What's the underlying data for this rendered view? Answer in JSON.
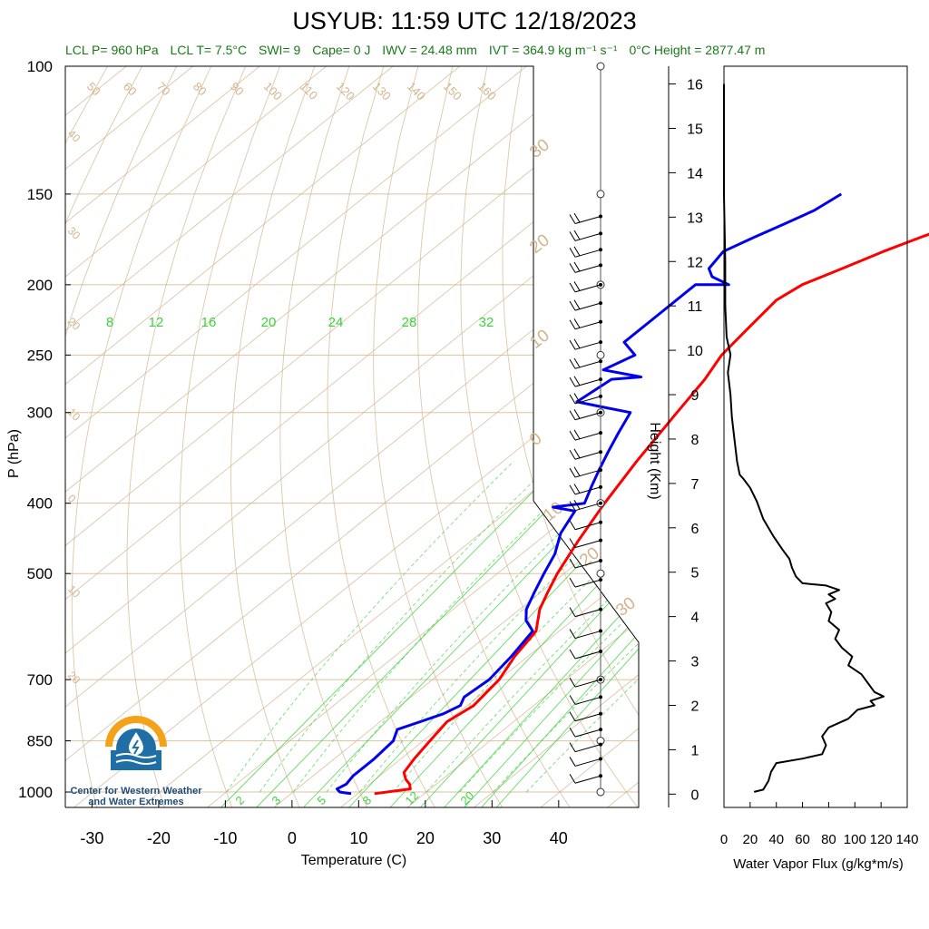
{
  "header": {
    "title": "USYUB: 11:59 UTC 12/18/2023"
  },
  "stats": {
    "lcl_p": "LCL P= 960 hPa",
    "lcl_t": "LCL T= 7.5°C",
    "swi": "SWI= 9",
    "cape": "Cape= 0 J",
    "iwv": "IWV = 24.48 mm",
    "ivt": "IVT = 364.9 kg m⁻¹ s⁻¹",
    "freezing": "0°C Height = 2877.47 m"
  },
  "logo": {
    "line1": "Center for Western Weather",
    "line2": "and Water Extremes"
  },
  "colors": {
    "temperature": "#ff0000",
    "dewpoint": "#0000ee",
    "dry_adiabat": "#d2b48c",
    "mixing_ratio": "#3cd23c",
    "logo_orange": "#f5a21b",
    "logo_blue": "#1f6fa6"
  },
  "chart_data": [
    {
      "type": "line",
      "name": "skew-t",
      "xlabel": "Temperature (C)",
      "ylabel": "P (hPa)",
      "xlim": [
        -34,
        52
      ],
      "ylim": [
        1050,
        100
      ],
      "y_scale": "log",
      "x_ticks": [
        -30,
        -20,
        -10,
        0,
        10,
        20,
        30,
        40
      ],
      "y_ticks": [
        100,
        150,
        200,
        250,
        300,
        400,
        500,
        700,
        850,
        1000
      ],
      "temperature_labels_top": [
        "50",
        "60",
        "70",
        "80",
        "90",
        "100",
        "110",
        "120",
        "130",
        "140",
        "150",
        "160"
      ],
      "dry_adiabat_labels_left": [
        "40",
        "30",
        "20",
        "10",
        "0",
        "10",
        "20"
      ],
      "dry_adiabat_labels_right": [
        "30",
        "20",
        "10",
        "0",
        "10",
        "20",
        "30"
      ],
      "mixing_ratio_labels_top": [
        "8",
        "12",
        "16",
        "20",
        "24",
        "28",
        "32"
      ],
      "mixing_ratio_labels_bottom": [
        "2",
        "3",
        "5",
        "8",
        "12",
        "20"
      ],
      "series": [
        {
          "name": "Temperature",
          "points": [
            [
              12.5,
              1005
            ],
            [
              17,
              990
            ],
            [
              16,
              975
            ],
            [
              14.5,
              960
            ],
            [
              13,
              940
            ],
            [
              12,
              900
            ],
            [
              11,
              850
            ],
            [
              10,
              800
            ],
            [
              11,
              760
            ],
            [
              10.5,
              730
            ],
            [
              10,
              700
            ],
            [
              8,
              650
            ],
            [
              6.5,
              600
            ],
            [
              3,
              560
            ],
            [
              1,
              530
            ],
            [
              -1,
              500
            ],
            [
              -4,
              450
            ],
            [
              -7,
              400
            ],
            [
              -10,
              350
            ],
            [
              -13,
              300
            ],
            [
              -15,
              270
            ],
            [
              -17,
              250
            ],
            [
              -18,
              230
            ],
            [
              -19,
              210
            ],
            [
              -18,
              200
            ],
            [
              -15,
              190
            ],
            [
              -12,
              180
            ],
            [
              -9,
              172
            ],
            [
              -6,
              165
            ],
            [
              -4,
              158
            ],
            [
              -3,
              150
            ]
          ]
        },
        {
          "name": "Dewpoint",
          "points": [
            [
              9,
              1005
            ],
            [
              7,
              1000
            ],
            [
              6,
              990
            ],
            [
              6.5,
              975
            ],
            [
              6,
              950
            ],
            [
              6,
              900
            ],
            [
              5.5,
              850
            ],
            [
              4,
              820
            ],
            [
              6,
              800
            ],
            [
              8,
              780
            ],
            [
              9,
              760
            ],
            [
              8,
              740
            ],
            [
              8.5,
              700
            ],
            [
              7.5,
              650
            ],
            [
              6,
              600
            ],
            [
              3,
              580
            ],
            [
              1,
              560
            ],
            [
              -1,
              530
            ],
            [
              -3,
              500
            ],
            [
              -5,
              470
            ],
            [
              -8,
              440
            ],
            [
              -10,
              410
            ],
            [
              -14,
              405
            ],
            [
              -10,
              400
            ],
            [
              -12,
              380
            ],
            [
              -14,
              360
            ],
            [
              -16,
              340
            ],
            [
              -18,
              320
            ],
            [
              -20,
              300
            ],
            [
              -25,
              295
            ],
            [
              -30,
              290
            ],
            [
              -29,
              270
            ],
            [
              -25,
              268
            ],
            [
              -32,
              262
            ],
            [
              -30,
              250
            ],
            [
              -34,
              240
            ],
            [
              -34,
              220
            ],
            [
              -34,
              200
            ],
            [
              -29,
              200
            ],
            [
              -33,
              195
            ],
            [
              -35,
              190
            ],
            [
              -36,
              180
            ],
            [
              -34,
              172
            ],
            [
              -32,
              165
            ],
            [
              -30,
              158
            ],
            [
              -29,
              150
            ]
          ]
        }
      ],
      "wind_barbs": [
        [
          161,
          20
        ],
        [
          170,
          20
        ],
        [
          179,
          20
        ],
        [
          188,
          20
        ],
        [
          200,
          20
        ],
        [
          212,
          20
        ],
        [
          225,
          20
        ],
        [
          240,
          20
        ],
        [
          255,
          20
        ],
        [
          270,
          20
        ],
        [
          285,
          20
        ],
        [
          300,
          20
        ],
        [
          320,
          20
        ],
        [
          340,
          20
        ],
        [
          360,
          20
        ],
        [
          380,
          15
        ],
        [
          400,
          15
        ],
        [
          425,
          10
        ],
        [
          450,
          10
        ],
        [
          480,
          10
        ],
        [
          510,
          10
        ],
        [
          560,
          10
        ],
        [
          600,
          10
        ],
        [
          640,
          10
        ],
        [
          700,
          10
        ],
        [
          740,
          10
        ],
        [
          780,
          10
        ],
        [
          820,
          10
        ],
        [
          860,
          10
        ],
        [
          900,
          10
        ],
        [
          950,
          5
        ]
      ]
    },
    {
      "type": "line",
      "name": "water-vapor-flux",
      "xlabel": "Water Vapor Flux (g/kg*m/s)",
      "ylabel": "Height (Km)",
      "xlim": [
        0,
        140
      ],
      "ylim": [
        -0.3,
        16.4
      ],
      "x_ticks": [
        0,
        20,
        40,
        60,
        80,
        100,
        120,
        140
      ],
      "y_ticks": [
        0,
        1,
        2,
        3,
        4,
        5,
        6,
        7,
        8,
        9,
        10,
        11,
        12,
        13,
        14,
        15,
        16
      ],
      "values": [
        [
          23,
          0.05
        ],
        [
          30,
          0.1
        ],
        [
          34,
          0.3
        ],
        [
          36,
          0.5
        ],
        [
          40,
          0.7
        ],
        [
          60,
          0.8
        ],
        [
          75,
          0.9
        ],
        [
          78,
          1.1
        ],
        [
          75,
          1.3
        ],
        [
          80,
          1.5
        ],
        [
          95,
          1.7
        ],
        [
          102,
          1.9
        ],
        [
          115,
          2.0
        ],
        [
          112,
          2.1
        ],
        [
          122,
          2.2
        ],
        [
          115,
          2.3
        ],
        [
          110,
          2.5
        ],
        [
          105,
          2.7
        ],
        [
          95,
          2.9
        ],
        [
          98,
          3.1
        ],
        [
          90,
          3.3
        ],
        [
          85,
          3.5
        ],
        [
          88,
          3.7
        ],
        [
          80,
          3.9
        ],
        [
          82,
          4.1
        ],
        [
          78,
          4.3
        ],
        [
          85,
          4.4
        ],
        [
          80,
          4.5
        ],
        [
          88,
          4.6
        ],
        [
          78,
          4.7
        ],
        [
          60,
          4.75
        ],
        [
          55,
          4.9
        ],
        [
          52,
          5.1
        ],
        [
          50,
          5.3
        ],
        [
          45,
          5.5
        ],
        [
          38,
          5.8
        ],
        [
          30,
          6.2
        ],
        [
          25,
          6.6
        ],
        [
          20,
          6.9
        ],
        [
          15,
          7.1
        ],
        [
          12,
          7.2
        ],
        [
          10,
          7.5
        ],
        [
          8,
          8.0
        ],
        [
          6,
          8.5
        ],
        [
          5,
          9.0
        ],
        [
          3,
          9.5
        ],
        [
          5,
          9.9
        ],
        [
          2,
          10.3
        ],
        [
          1,
          11
        ],
        [
          1,
          12
        ],
        [
          0,
          13.5
        ],
        [
          0,
          16
        ]
      ]
    }
  ]
}
